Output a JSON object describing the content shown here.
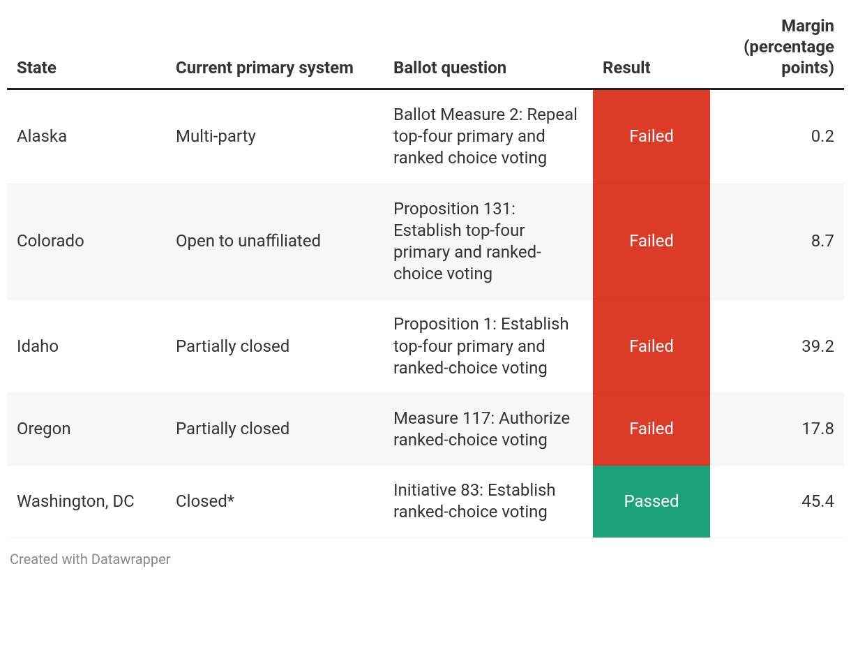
{
  "table": {
    "columns": [
      {
        "key": "state",
        "label": "State",
        "align": "left"
      },
      {
        "key": "primary",
        "label": "Current primary system",
        "align": "left"
      },
      {
        "key": "ballot",
        "label": "Ballot question",
        "align": "left"
      },
      {
        "key": "result",
        "label": "Result",
        "align": "left"
      },
      {
        "key": "margin",
        "label": "Margin (percentage points)",
        "align": "right"
      }
    ],
    "rows": [
      {
        "state": "Alaska",
        "primary": "Multi-party",
        "ballot": "Ballot Measure 2: Repeal top-four primary and ranked choice voting",
        "result": "Failed",
        "result_color": "#db3b27",
        "margin": "0.2"
      },
      {
        "state": "Colorado",
        "primary": "Open to unaffiliated",
        "ballot": "Proposition 131: Establish top-four primary and ranked-choice voting",
        "result": "Failed",
        "result_color": "#db3b27",
        "margin": "8.7"
      },
      {
        "state": "Idaho",
        "primary": "Partially closed",
        "ballot": "Proposition 1: Establish top-four primary and ranked-choice voting",
        "result": "Failed",
        "result_color": "#db3b27",
        "margin": "39.2"
      },
      {
        "state": "Oregon",
        "primary": "Partially closed",
        "ballot": "Measure 117: Authorize ranked-choice voting",
        "result": "Failed",
        "result_color": "#db3b27",
        "margin": "17.8"
      },
      {
        "state": "Washington, DC",
        "primary": "Closed*",
        "ballot": "Initiative 83: Establish ranked-choice voting",
        "result": "Passed",
        "result_color": "#1ca178",
        "margin": "45.4"
      }
    ],
    "header_border_color": "#222222",
    "row_stripe_colors": [
      "#ffffff",
      "#f7f7f7"
    ],
    "font_size_body": 24,
    "font_size_header": 24,
    "text_color": "#333333",
    "result_text_color": "#ffffff"
  },
  "footer": {
    "credit": "Created with Datawrapper",
    "color": "#888888",
    "font_size": 20
  }
}
